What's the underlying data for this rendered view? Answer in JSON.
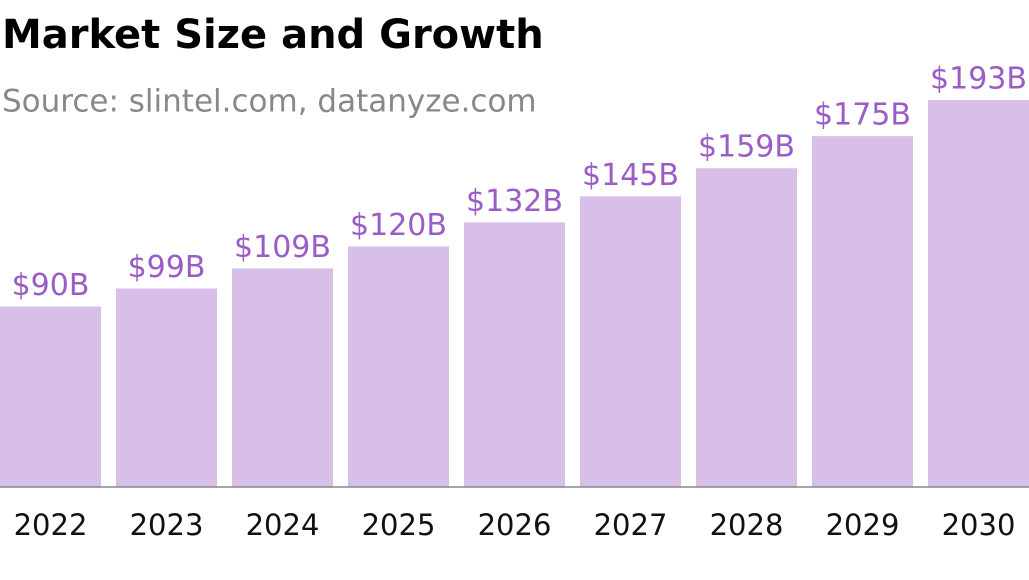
{
  "chart_data": {
    "type": "bar",
    "title": "Market Size and Growth",
    "subtitle": "Source: slintel.com, datanyze.com",
    "categories": [
      "2022",
      "2023",
      "2024",
      "2025",
      "2026",
      "2027",
      "2028",
      "2029",
      "2030"
    ],
    "values": [
      90,
      99,
      109,
      120,
      132,
      145,
      159,
      175,
      193
    ],
    "value_labels": [
      "$90B",
      "$99B",
      "$109B",
      "$120B",
      "$132B",
      "$145B",
      "$159B",
      "$175B",
      "$193B"
    ],
    "color": "#d8bfe8",
    "label_color": "#9a5cc6",
    "ylim": [
      0,
      200
    ]
  }
}
